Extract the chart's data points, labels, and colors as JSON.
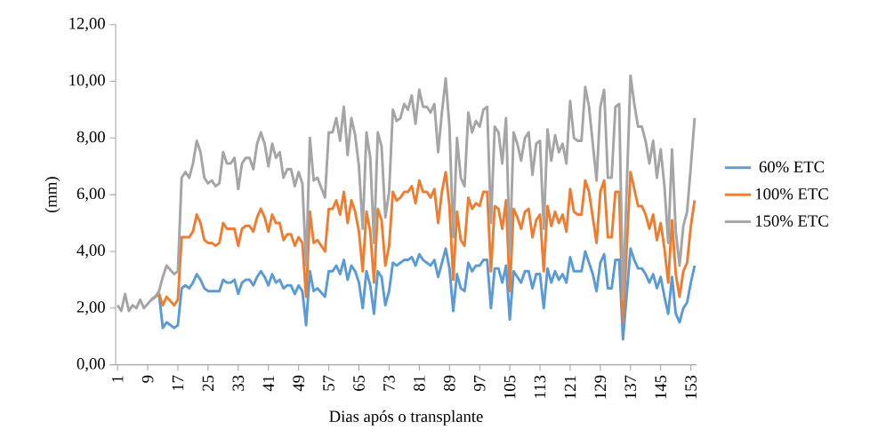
{
  "chart_data": {
    "type": "line",
    "xlabel": "Dias após o transplante",
    "ylabel": "(mm)",
    "x": [
      1,
      2,
      3,
      4,
      5,
      6,
      7,
      8,
      10,
      11,
      12,
      13,
      14,
      16,
      17,
      18,
      19,
      20,
      21,
      22,
      23,
      24,
      25,
      26,
      27,
      28,
      29,
      30,
      31,
      32,
      33,
      34,
      35,
      36,
      37,
      38,
      39,
      40,
      41,
      42,
      43,
      44,
      45,
      46,
      47,
      48,
      49,
      50,
      51,
      52,
      53,
      54,
      56,
      57,
      58,
      59,
      60,
      61,
      62,
      63,
      64,
      65,
      66,
      67,
      68,
      69,
      70,
      71,
      72,
      73,
      74,
      75,
      76,
      77,
      78,
      79,
      80,
      81,
      82,
      83,
      84,
      85,
      86,
      87,
      88,
      89,
      90,
      91,
      92,
      93,
      94,
      95,
      96,
      97,
      98,
      99,
      100,
      101,
      102,
      103,
      104,
      105,
      106,
      107,
      108,
      109,
      110,
      111,
      112,
      113,
      114,
      115,
      116,
      117,
      118,
      119,
      120,
      121,
      122,
      123,
      124,
      125,
      126,
      127,
      128,
      129,
      130,
      131,
      132,
      133,
      134,
      135,
      137,
      138,
      139,
      140,
      141,
      142,
      143,
      144,
      145,
      146,
      147,
      148,
      149,
      150,
      151,
      152,
      153,
      154
    ],
    "series": [
      {
        "name": "60% ETC",
        "color": "#5b9bd5",
        "values": [
          null,
          null,
          null,
          null,
          null,
          null,
          null,
          null,
          2.3,
          2.4,
          2.5,
          1.3,
          1.5,
          1.3,
          1.4,
          2.7,
          2.8,
          2.7,
          2.9,
          3.2,
          3.0,
          2.7,
          2.6,
          2.6,
          2.6,
          2.6,
          3.0,
          2.9,
          2.9,
          3.0,
          2.5,
          2.9,
          3.0,
          3.0,
          2.8,
          3.1,
          3.3,
          3.1,
          2.8,
          3.2,
          2.9,
          3.0,
          2.7,
          2.8,
          2.8,
          2.5,
          2.8,
          2.6,
          1.4,
          3.3,
          2.6,
          2.7,
          2.4,
          3.3,
          3.3,
          3.5,
          3.2,
          3.7,
          3.0,
          3.5,
          3.3,
          2.9,
          2.0,
          3.3,
          2.8,
          1.8,
          3.3,
          3.1,
          2.1,
          2.6,
          3.6,
          3.5,
          3.6,
          3.7,
          3.7,
          3.8,
          3.5,
          3.9,
          3.7,
          3.6,
          3.5,
          3.7,
          3.1,
          3.6,
          4.1,
          3.4,
          1.9,
          3.2,
          2.7,
          2.6,
          3.6,
          3.3,
          3.5,
          3.5,
          3.7,
          3.7,
          2.0,
          3.4,
          3.4,
          2.9,
          3.5,
          1.6,
          3.3,
          3.1,
          2.9,
          3.3,
          3.3,
          2.7,
          3.2,
          3.2,
          2.0,
          3.4,
          2.9,
          3.3,
          3.0,
          3.2,
          2.9,
          3.8,
          3.3,
          3.3,
          3.3,
          4.0,
          3.6,
          3.2,
          2.6,
          3.6,
          3.9,
          2.7,
          2.7,
          3.7,
          3.7,
          0.9,
          4.1,
          3.7,
          3.4,
          3.4,
          3.2,
          2.9,
          3.2,
          2.7,
          3.1,
          2.4,
          1.8,
          3.1,
          1.8,
          1.5,
          2.0,
          2.2,
          2.9,
          3.5
        ]
      },
      {
        "name": "100% ETC",
        "color": "#ed7d31",
        "values": [
          null,
          null,
          null,
          null,
          null,
          null,
          null,
          null,
          2.3,
          2.4,
          2.5,
          2.1,
          2.4,
          2.1,
          2.3,
          4.5,
          4.5,
          4.5,
          4.7,
          5.3,
          5.0,
          4.4,
          4.3,
          4.3,
          4.2,
          4.3,
          5.0,
          4.8,
          4.8,
          4.8,
          4.2,
          4.8,
          4.9,
          4.9,
          4.7,
          5.2,
          5.5,
          5.2,
          4.7,
          5.3,
          5.0,
          5.0,
          4.4,
          4.6,
          4.6,
          4.2,
          4.5,
          4.3,
          2.4,
          5.4,
          4.3,
          4.4,
          4.0,
          5.5,
          5.5,
          5.8,
          5.3,
          6.1,
          5.0,
          5.8,
          5.4,
          4.7,
          3.3,
          5.4,
          4.7,
          2.9,
          5.5,
          5.1,
          3.5,
          4.2,
          6.1,
          5.8,
          5.9,
          6.1,
          6.1,
          6.3,
          5.7,
          6.5,
          6.1,
          6.1,
          5.9,
          6.2,
          5.0,
          6.1,
          6.8,
          5.6,
          3.0,
          5.4,
          4.4,
          4.2,
          5.9,
          5.5,
          5.7,
          5.6,
          6.1,
          6.1,
          3.3,
          5.6,
          5.5,
          4.8,
          5.8,
          2.6,
          5.5,
          5.2,
          4.8,
          5.4,
          5.5,
          4.5,
          5.1,
          5.3,
          3.3,
          5.6,
          4.9,
          5.4,
          5.0,
          5.3,
          4.7,
          6.2,
          5.4,
          5.3,
          5.3,
          6.5,
          6.1,
          5.2,
          4.3,
          6.1,
          6.5,
          4.5,
          4.5,
          6.1,
          6.1,
          1.5,
          6.8,
          6.2,
          5.6,
          5.6,
          5.3,
          4.8,
          5.3,
          4.4,
          5.0,
          4.1,
          2.9,
          5.1,
          3.2,
          2.4,
          3.3,
          3.6,
          4.9,
          5.8
        ]
      },
      {
        "name": "150% ETC",
        "color": "#a5a5a5",
        "values": [
          2.1,
          1.9,
          2.5,
          1.9,
          2.1,
          2.0,
          2.3,
          2.0,
          2.3,
          2.4,
          2.6,
          3.1,
          3.5,
          3.2,
          3.3,
          6.6,
          6.8,
          6.6,
          7.1,
          7.9,
          7.5,
          6.6,
          6.4,
          6.5,
          6.3,
          6.4,
          7.5,
          7.1,
          7.1,
          7.3,
          6.2,
          7.1,
          7.3,
          7.3,
          6.9,
          7.8,
          8.2,
          7.8,
          7.0,
          7.8,
          7.3,
          7.5,
          6.6,
          6.9,
          6.9,
          6.3,
          6.8,
          6.4,
          3.5,
          8.0,
          6.5,
          6.6,
          5.9,
          8.2,
          8.2,
          8.7,
          7.9,
          9.1,
          7.4,
          8.7,
          8.1,
          7.0,
          4.8,
          8.2,
          7.3,
          4.3,
          8.2,
          7.7,
          5.2,
          6.1,
          9.0,
          8.6,
          8.7,
          9.2,
          9.0,
          9.5,
          8.5,
          9.7,
          9.1,
          9.1,
          8.9,
          9.2,
          7.5,
          8.9,
          10.1,
          8.4,
          4.5,
          8.0,
          6.6,
          6.3,
          8.9,
          8.2,
          8.6,
          8.4,
          9.0,
          9.1,
          5.0,
          8.4,
          8.2,
          7.1,
          8.7,
          3.9,
          8.2,
          7.8,
          7.2,
          8.0,
          8.2,
          6.7,
          7.8,
          7.9,
          4.8,
          8.3,
          7.2,
          8.1,
          7.5,
          7.8,
          7.1,
          9.3,
          8.0,
          7.9,
          7.9,
          9.8,
          9.1,
          7.8,
          6.5,
          9.1,
          9.7,
          6.6,
          6.6,
          9.1,
          9.2,
          2.3,
          10.2,
          9.2,
          8.4,
          8.4,
          7.9,
          7.1,
          7.9,
          6.6,
          7.6,
          6.3,
          4.3,
          7.6,
          4.7,
          3.5,
          4.9,
          5.4,
          7.0,
          8.7
        ]
      }
    ],
    "xlim": [
      0.5,
      154.5
    ],
    "xticks": [
      1,
      9,
      17,
      25,
      33,
      41,
      49,
      57,
      65,
      73,
      81,
      89,
      97,
      105,
      113,
      121,
      129,
      137,
      145,
      153
    ],
    "ylim": [
      0,
      12
    ],
    "yticks": [
      {
        "value": 0,
        "label": "0,00"
      },
      {
        "value": 2,
        "label": "2,00"
      },
      {
        "value": 4,
        "label": "4,00"
      },
      {
        "value": 6,
        "label": "6,00"
      },
      {
        "value": 8,
        "label": "8,00"
      },
      {
        "value": 10,
        "label": "10,00"
      },
      {
        "value": 12,
        "label": "12,00"
      }
    ],
    "legend": "right",
    "grid": false,
    "marker": "none",
    "line_style": "solid"
  }
}
